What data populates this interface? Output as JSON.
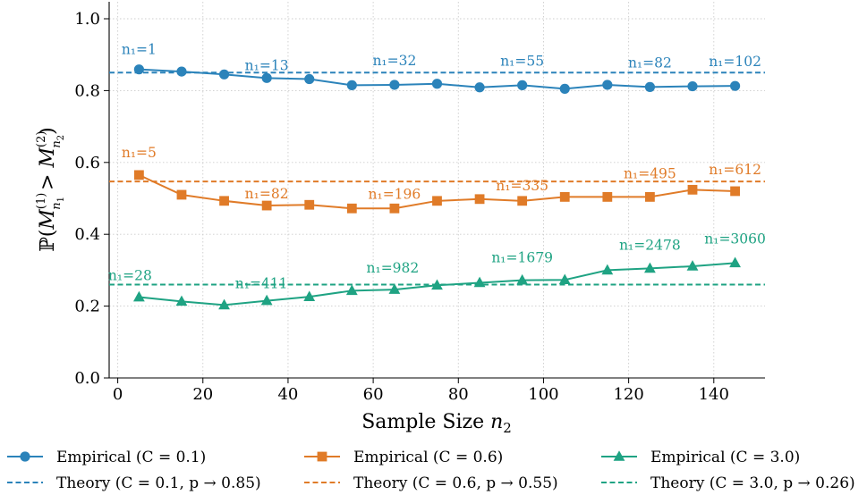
{
  "chart_data": {
    "type": "line",
    "xlabel": "Sample Size n₂",
    "ylabel": "ℙ(M⁽¹⁾ₙ₁ > M⁽²⁾ₙ₂)",
    "xlim": [
      -2,
      152
    ],
    "ylim": [
      0,
      1.05
    ],
    "xticks": [
      "0",
      "20",
      "40",
      "60",
      "80",
      "100",
      "120",
      "140"
    ],
    "yticks": [
      "0.0",
      "0.2",
      "0.4",
      "0.6",
      "0.8",
      "1.0"
    ],
    "grid": true,
    "legend_position": "bottom",
    "x": [
      5,
      15,
      25,
      35,
      45,
      55,
      65,
      75,
      85,
      95,
      105,
      115,
      125,
      135,
      145
    ],
    "series": [
      {
        "name": "Empirical (C = 0.1)",
        "color": "#2b83ba",
        "marker": "circle",
        "values": [
          0.859,
          0.853,
          0.845,
          0.835,
          0.832,
          0.815,
          0.816,
          0.819,
          0.809,
          0.815,
          0.805,
          0.816,
          0.81,
          0.812,
          0.813
        ],
        "theory_name": "Theory (C = 0.1, p → 0.85)",
        "theory_value": 0.85,
        "annotations": [
          {
            "x": 5,
            "text": "n₁=1"
          },
          {
            "x": 35,
            "text": "n₁=13"
          },
          {
            "x": 65,
            "text": "n₁=32"
          },
          {
            "x": 95,
            "text": "n₁=55"
          },
          {
            "x": 125,
            "text": "n₁=82"
          },
          {
            "x": 145,
            "text": "n₁=102"
          }
        ]
      },
      {
        "name": "Empirical (C = 0.6)",
        "color": "#e07b28",
        "marker": "square",
        "values": [
          0.565,
          0.51,
          0.493,
          0.48,
          0.482,
          0.472,
          0.472,
          0.493,
          0.498,
          0.493,
          0.504,
          0.504,
          0.504,
          0.524,
          0.52
        ],
        "theory_name": "Theory (C = 0.6, p → 0.55)",
        "theory_value": 0.547,
        "annotations": [
          {
            "x": 5,
            "text": "n₁=5"
          },
          {
            "x": 35,
            "text": "n₁=82"
          },
          {
            "x": 65,
            "text": "n₁=196"
          },
          {
            "x": 95,
            "text": "n₁=335"
          },
          {
            "x": 125,
            "text": "n₁=495"
          },
          {
            "x": 145,
            "text": "n₁=612"
          }
        ]
      },
      {
        "name": "Empirical (C = 3.0)",
        "color": "#1fa383",
        "marker": "triangle",
        "values": [
          0.225,
          0.213,
          0.203,
          0.215,
          0.226,
          0.243,
          0.246,
          0.258,
          0.265,
          0.272,
          0.273,
          0.3,
          0.305,
          0.311,
          0.32
        ],
        "theory_name": "Theory (C = 3.0, p → 0.26)",
        "theory_value": 0.26,
        "annotations": [
          {
            "x": 5,
            "text": "n₁=28"
          },
          {
            "x": 35,
            "text": "n₁=411"
          },
          {
            "x": 65,
            "text": "n₁=982"
          },
          {
            "x": 95,
            "text": "n₁=1679"
          },
          {
            "x": 125,
            "text": "n₁=2478"
          },
          {
            "x": 145,
            "text": "n₁=3060"
          }
        ]
      }
    ]
  }
}
